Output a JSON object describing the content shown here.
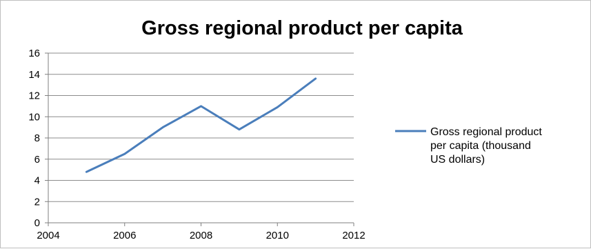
{
  "chart_data": {
    "type": "line",
    "title": "Gross regional product per capita",
    "xlabel": "",
    "ylabel": "",
    "xlim": [
      2004,
      2012
    ],
    "ylim": [
      0,
      16
    ],
    "x_ticks": [
      "2004",
      "2006",
      "2008",
      "2010",
      "2012"
    ],
    "y_ticks": [
      "0",
      "2",
      "4",
      "6",
      "8",
      "10",
      "12",
      "14",
      "16"
    ],
    "grid": "horizontal",
    "legend_position": "right",
    "series": [
      {
        "name": "Gross regional product per capita (thousand US dollars)",
        "legend_lines": [
          "Gross regional product",
          "per capita (thousand",
          "US dollars)"
        ],
        "color": "#4a7ebb",
        "x": [
          2005,
          2006,
          2007,
          2008,
          2009,
          2010,
          2011
        ],
        "y": [
          4.8,
          6.5,
          9.0,
          11.0,
          8.8,
          10.9,
          13.6
        ]
      }
    ]
  }
}
